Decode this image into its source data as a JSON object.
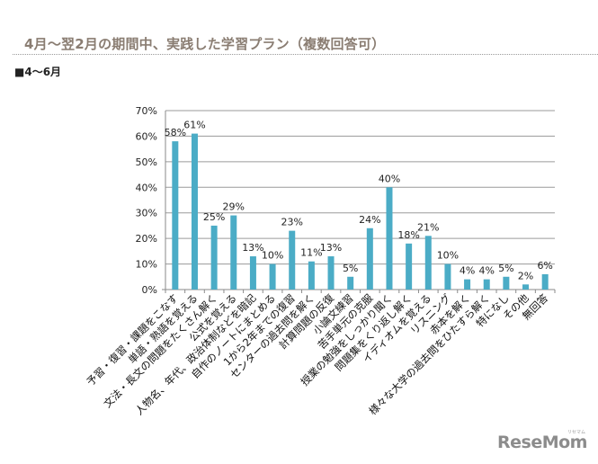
{
  "page": {
    "title": "4月～翌2月の期間中、実践した学習プラン（複数回答可）",
    "section_label": "■4～6月",
    "logo": "ReseMom",
    "logo_sub": "リセマム"
  },
  "chart_data": {
    "type": "bar",
    "title": "",
    "xlabel": "",
    "ylabel": "",
    "ylim": [
      0,
      70
    ],
    "yticks": [
      0,
      10,
      20,
      30,
      40,
      50,
      60,
      70
    ],
    "ytick_labels": [
      "0%",
      "10%",
      "20%",
      "30%",
      "40%",
      "50%",
      "60%",
      "70%"
    ],
    "grid": true,
    "legend": "none",
    "bar_color": "#4bacc6",
    "categories": [
      "予習・復習・課題をこなす",
      "単語・熟語を覚える",
      "文法・長文の問題をたくさん解く",
      "公式を覚える",
      "人物名、年代、政治体制などを暗記",
      "自作のノートにまとめる",
      "1から2年までの復習",
      "センターの過去問を解く",
      "計算問題の反復",
      "小論文練習",
      "苦手単元の克服",
      "授業の勉強をしっかり聞く",
      "問題集をくり返し解く",
      "イディオムを覚える",
      "リスニング",
      "赤本を解く",
      "様々な大学の過去問をひたすら解く",
      "特になし",
      "その他",
      "無回答"
    ],
    "values": [
      58,
      61,
      25,
      29,
      13,
      10,
      23,
      11,
      13,
      5,
      24,
      40,
      18,
      21,
      10,
      4,
      4,
      5,
      2,
      6
    ],
    "data_labels": [
      "58%",
      "61%",
      "25%",
      "29%",
      "13%",
      "10%",
      "23%",
      "11%",
      "13%",
      "5%",
      "24%",
      "40%",
      "18%",
      "21%",
      "10%",
      "4%",
      "4%",
      "5%",
      "2%",
      "6%"
    ]
  }
}
